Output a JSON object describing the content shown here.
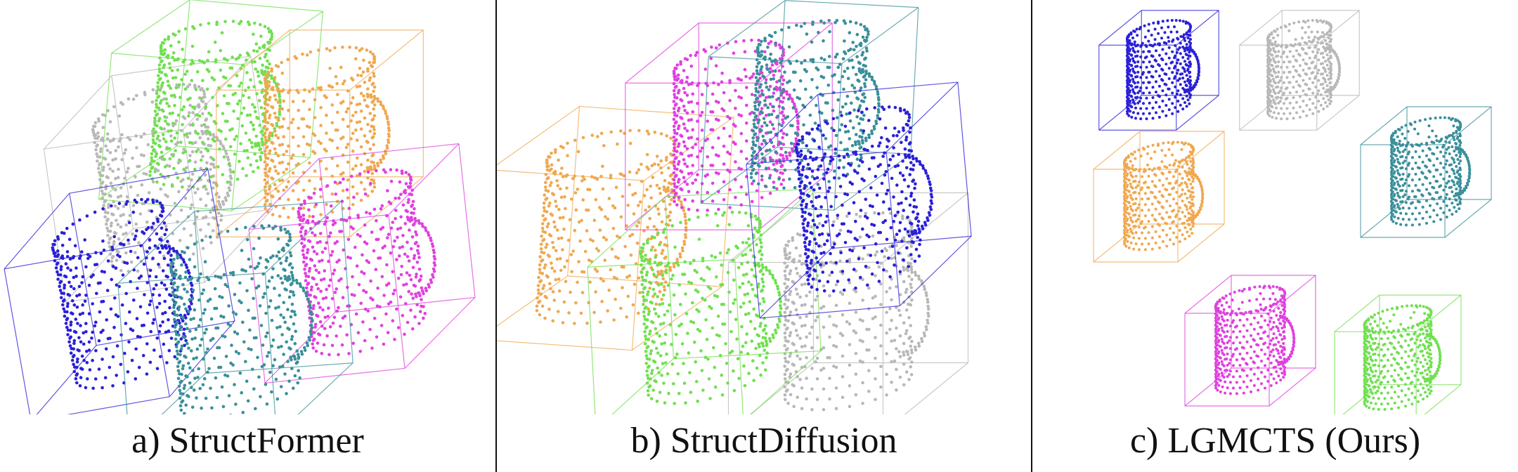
{
  "panels": [
    {
      "id": "a",
      "caption": "a) StructFormer"
    },
    {
      "id": "b",
      "caption": "b) StructDiffusion"
    },
    {
      "id": "c",
      "caption": "c) LGMCTS (Ours)"
    }
  ],
  "colors": {
    "blue": "#2a20d8",
    "grey": "#b8b8b8",
    "teal": "#3a8f9a",
    "orange": "#f0a850",
    "magenta": "#e040e0",
    "green": "#70e050"
  },
  "icons": [
    "point-cloud-mug"
  ]
}
